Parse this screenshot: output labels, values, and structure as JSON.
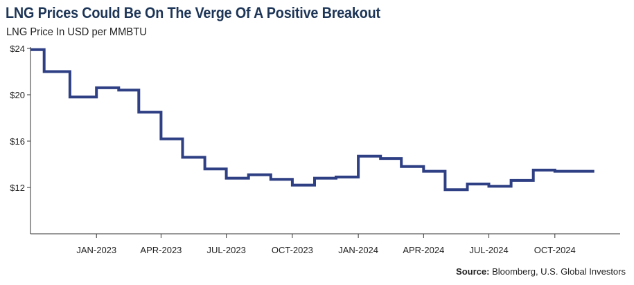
{
  "header": {
    "title": "LNG Prices Could Be On The Verge Of A Positive Breakout",
    "subtitle": "LNG Price In USD per MMBTU"
  },
  "footer": {
    "source_label": "Source:",
    "source_text": "Bloomberg, U.S. Global Investors"
  },
  "colors": {
    "line": "#2e3f84",
    "title": "#1d3557",
    "axis": "#333333"
  },
  "chart_data": {
    "type": "line",
    "step": true,
    "title": "LNG Prices Could Be On The Verge Of A Positive Breakout",
    "subtitle": "LNG Price In USD per MMBTU",
    "xlabel": "",
    "ylabel": "",
    "ylim": [
      8,
      24
    ],
    "y_ticks": [
      24,
      20,
      16,
      12
    ],
    "y_tick_labels": [
      "$24",
      "$20",
      "$16",
      "$12"
    ],
    "x_ticks": [
      "2023-01",
      "2023-04",
      "2023-07",
      "2023-10",
      "2024-01",
      "2024-04",
      "2024-07",
      "2024-10"
    ],
    "x_tick_labels": [
      "JAN-2023",
      "APR-2023",
      "JUL-2023",
      "OCT-2023",
      "JAN-2024",
      "APR-2024",
      "JUL-2024",
      "OCT-2024"
    ],
    "xlim": [
      "2022-10-01",
      "2024-12-31"
    ],
    "grid": false,
    "series": [
      {
        "x": [
          "2022-10-01",
          "2022-10-20",
          "2022-11-25",
          "2023-01-01",
          "2023-02-01",
          "2023-03-01",
          "2023-04-01",
          "2023-05-01",
          "2023-06-01",
          "2023-07-01",
          "2023-08-01",
          "2023-09-01",
          "2023-10-01",
          "2023-11-01",
          "2023-12-01",
          "2024-01-01",
          "2024-02-01",
          "2024-03-01",
          "2024-04-01",
          "2024-05-01",
          "2024-06-01",
          "2024-07-01",
          "2024-08-01",
          "2024-09-01",
          "2024-10-01",
          "2024-11-01",
          "2024-11-25"
        ],
        "y": [
          23.9,
          22.0,
          19.8,
          20.6,
          20.4,
          18.5,
          16.2,
          14.6,
          13.6,
          12.8,
          13.1,
          12.7,
          12.2,
          12.8,
          12.9,
          14.7,
          14.5,
          13.8,
          13.4,
          11.8,
          12.3,
          12.1,
          12.6,
          13.5,
          13.4,
          13.4,
          13.4
        ]
      }
    ]
  }
}
